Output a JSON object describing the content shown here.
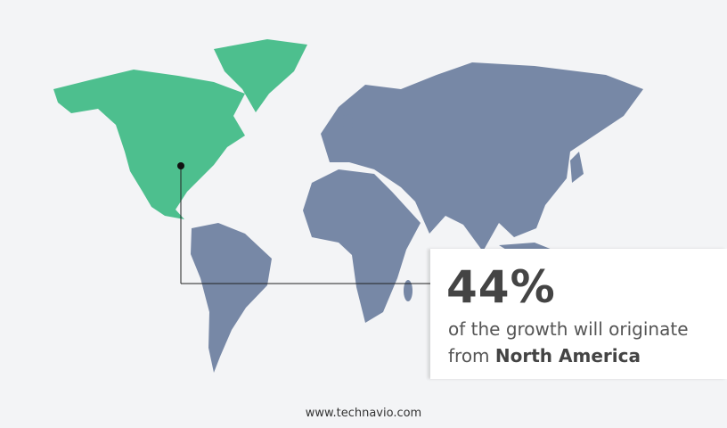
{
  "colors": {
    "highlight": "#4dbf8e",
    "other": "#7788a6",
    "background": "#f3f4f6"
  },
  "highlighted_region": "North America",
  "callout": {
    "value": "44%",
    "line1": "of the growth will originate",
    "line2_prefix": "from ",
    "line2_region": "North America"
  },
  "footer": {
    "url": "www.technavio.com"
  }
}
